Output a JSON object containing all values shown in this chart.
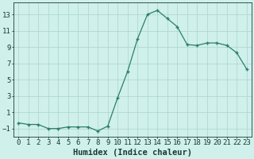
{
  "x": [
    0,
    1,
    2,
    3,
    4,
    5,
    6,
    7,
    8,
    9,
    10,
    11,
    12,
    13,
    14,
    15,
    16,
    17,
    18,
    19,
    20,
    21,
    22,
    23
  ],
  "y": [
    -0.3,
    -0.5,
    -0.5,
    -1.0,
    -1.0,
    -0.8,
    -0.8,
    -0.8,
    -1.3,
    -0.7,
    2.8,
    6.0,
    10.0,
    13.0,
    13.5,
    12.5,
    11.5,
    9.3,
    9.2,
    9.5,
    9.5,
    9.2,
    8.3,
    6.3
  ],
  "xlabel": "Humidex (Indice chaleur)",
  "line_color": "#2e7d6e",
  "bg_color": "#cff0eb",
  "grid_color": "#aad4cc",
  "tick_label_color": "#1a3a38",
  "xlim": [
    -0.5,
    23.5
  ],
  "ylim": [
    -2.0,
    14.5
  ],
  "yticks": [
    -1,
    1,
    3,
    5,
    7,
    9,
    11,
    13
  ],
  "xtick_labels": [
    "0",
    "1",
    "2",
    "3",
    "4",
    "5",
    "6",
    "7",
    "8",
    "9",
    "10",
    "11",
    "12",
    "13",
    "14",
    "15",
    "16",
    "17",
    "18",
    "19",
    "20",
    "21",
    "22",
    "23"
  ],
  "xlabel_fontsize": 7.5,
  "tick_fontsize": 6.5
}
